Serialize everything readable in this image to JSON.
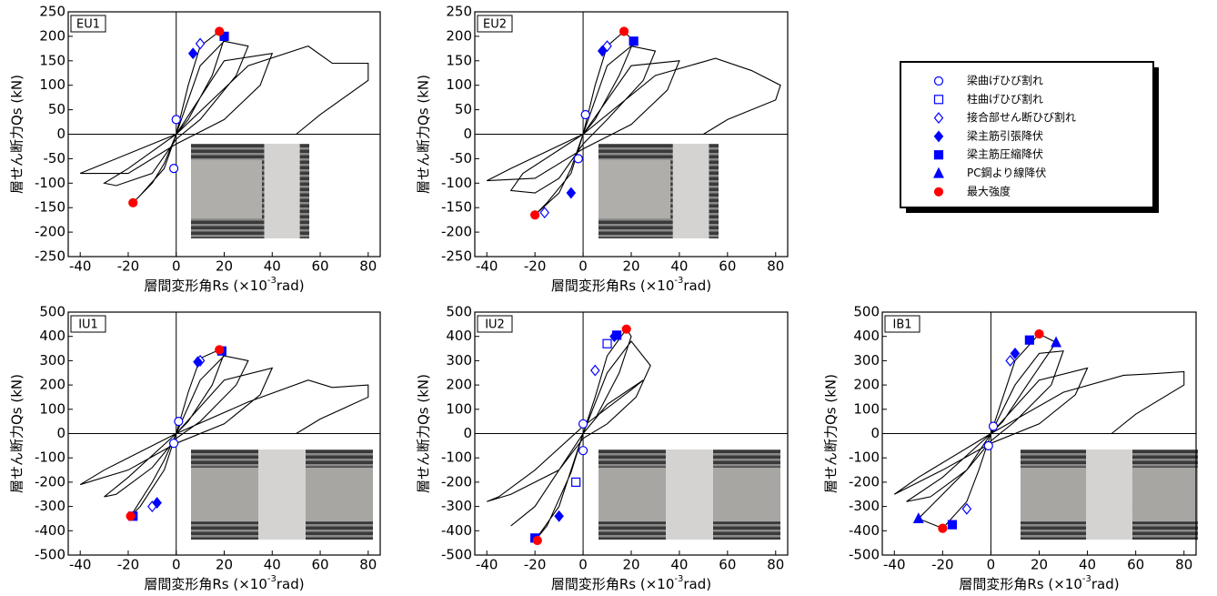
{
  "chart_data": [
    {
      "type": "line",
      "title": "EU1",
      "ylabel": "層せん断力Qs (kN)",
      "xlabel": "層間変形角Rs (×10",
      "xlabel_exp": "-3",
      "xlabel_unit": "rad)",
      "xlim": [
        -45,
        85
      ],
      "xticks": [
        -40,
        -20,
        0,
        20,
        40,
        60,
        80
      ],
      "ylim": [
        -250,
        250
      ],
      "yticks": [
        -250,
        -200,
        -150,
        -100,
        -50,
        0,
        50,
        100,
        150,
        200,
        250
      ],
      "series": [
        {
          "color": "#000000",
          "x": [
            0,
            5,
            10,
            18,
            20,
            15,
            5,
            0,
            -5,
            -10,
            -18,
            -15,
            -5,
            0,
            10,
            20,
            30,
            25,
            10,
            0,
            -10,
            -25,
            -30,
            -20,
            0,
            20,
            40,
            35,
            20,
            0,
            -20,
            -40,
            -30,
            0,
            30,
            55,
            65,
            80,
            80,
            60,
            50
          ],
          "values": [
            0,
            100,
            180,
            210,
            195,
            120,
            30,
            0,
            -60,
            -100,
            -140,
            -125,
            -70,
            0,
            140,
            190,
            180,
            120,
            30,
            -10,
            -80,
            -105,
            -100,
            -70,
            0,
            150,
            165,
            100,
            30,
            -20,
            -80,
            -80,
            -60,
            0,
            140,
            180,
            145,
            145,
            110,
            40,
            0
          ]
        },
        {
          "name": "梁曲げひび割れ",
          "marker": "circle-open",
          "color": "#0000ff",
          "x": [
            0,
            -1
          ],
          "values": [
            30,
            -70
          ]
        },
        {
          "name": "柱曲げひび割れ",
          "marker": "square-open",
          "color": "#0000ff",
          "x": [],
          "values": []
        },
        {
          "name": "接合部せん断ひび割れ",
          "marker": "diamond-open",
          "color": "#0000ff",
          "x": [
            10
          ],
          "values": [
            185
          ]
        },
        {
          "name": "梁主筋引張降伏",
          "marker": "diamond",
          "color": "#0000ff",
          "x": [
            7
          ],
          "values": [
            165
          ]
        },
        {
          "name": "梁主筋圧縮降伏",
          "marker": "square",
          "color": "#0000ff",
          "x": [
            20
          ],
          "values": [
            200
          ]
        },
        {
          "name": "PC鋼より線降伏",
          "marker": "triangle",
          "color": "#0000ff",
          "x": [],
          "values": []
        },
        {
          "name": "最大強度",
          "marker": "circle",
          "color": "#ff0000",
          "x": [
            18,
            -18
          ],
          "values": [
            210,
            -140
          ]
        }
      ]
    },
    {
      "type": "line",
      "title": "EU2",
      "ylabel": "層せん断力Qs (kN)",
      "xlabel": "層間変形角Rs (×10",
      "xlabel_exp": "-3",
      "xlabel_unit": "rad)",
      "xlim": [
        -45,
        85
      ],
      "xticks": [
        -40,
        -20,
        0,
        20,
        40,
        60,
        80
      ],
      "ylim": [
        -250,
        250
      ],
      "yticks": [
        -250,
        -200,
        -150,
        -100,
        -50,
        0,
        50,
        100,
        150,
        200,
        250
      ],
      "series": [
        {
          "color": "#000000",
          "x": [
            0,
            5,
            10,
            17,
            21,
            15,
            5,
            0,
            -5,
            -10,
            -20,
            -15,
            -5,
            0,
            10,
            20,
            30,
            25,
            10,
            0,
            -10,
            -20,
            -30,
            -25,
            0,
            20,
            40,
            35,
            20,
            0,
            -20,
            -40,
            -30,
            0,
            30,
            55,
            70,
            82,
            80,
            60,
            50
          ],
          "values": [
            0,
            100,
            180,
            210,
            190,
            120,
            30,
            0,
            -70,
            -120,
            -165,
            -140,
            -80,
            0,
            140,
            180,
            170,
            110,
            30,
            -20,
            -90,
            -120,
            -115,
            -80,
            0,
            140,
            150,
            90,
            20,
            -30,
            -90,
            -95,
            -70,
            0,
            120,
            155,
            130,
            100,
            70,
            30,
            0
          ]
        },
        {
          "name": "梁曲げひび割れ",
          "marker": "circle-open",
          "color": "#0000ff",
          "x": [
            1,
            -2
          ],
          "values": [
            40,
            -50
          ]
        },
        {
          "name": "柱曲げひび割れ",
          "marker": "square-open",
          "color": "#0000ff",
          "x": [],
          "values": []
        },
        {
          "name": "接合部せん断ひび割れ",
          "marker": "diamond-open",
          "color": "#0000ff",
          "x": [
            10,
            -16
          ],
          "values": [
            180,
            -160
          ]
        },
        {
          "name": "梁主筋引張降伏",
          "marker": "diamond",
          "color": "#0000ff",
          "x": [
            8,
            -5
          ],
          "values": [
            170,
            -120
          ]
        },
        {
          "name": "梁主筋圧縮降伏",
          "marker": "square",
          "color": "#0000ff",
          "x": [
            21
          ],
          "values": [
            190
          ]
        },
        {
          "name": "PC鋼より線降伏",
          "marker": "triangle",
          "color": "#0000ff",
          "x": [],
          "values": []
        },
        {
          "name": "最大強度",
          "marker": "circle",
          "color": "#ff0000",
          "x": [
            17,
            -20
          ],
          "values": [
            210,
            -165
          ]
        }
      ]
    },
    {
      "type": "line",
      "title": "IU1",
      "ylabel": "層せん断力Qs (kN)",
      "xlabel": "層間変形角Rs (×10",
      "xlabel_exp": "-3",
      "xlabel_unit": "rad)",
      "xlim": [
        -45,
        85
      ],
      "xticks": [
        -40,
        -20,
        0,
        20,
        40,
        60,
        80
      ],
      "ylim": [
        -500,
        500
      ],
      "yticks": [
        -500,
        -400,
        -300,
        -200,
        -100,
        0,
        100,
        200,
        300,
        400,
        500
      ],
      "series": [
        {
          "color": "#000000",
          "x": [
            0,
            5,
            10,
            18,
            20,
            15,
            5,
            0,
            -5,
            -10,
            -19,
            -15,
            -5,
            0,
            10,
            20,
            30,
            25,
            10,
            0,
            -10,
            -25,
            -30,
            -20,
            0,
            20,
            40,
            35,
            20,
            0,
            -20,
            -40,
            -30,
            0,
            30,
            55,
            65,
            80,
            80,
            60,
            50
          ],
          "values": [
            0,
            170,
            310,
            345,
            330,
            200,
            50,
            0,
            -110,
            -200,
            -340,
            -300,
            -150,
            0,
            220,
            320,
            300,
            200,
            50,
            -20,
            -140,
            -250,
            -260,
            -180,
            0,
            220,
            270,
            160,
            40,
            -40,
            -150,
            -210,
            -150,
            0,
            130,
            220,
            190,
            200,
            150,
            60,
            0
          ]
        },
        {
          "name": "梁曲げひび割れ",
          "marker": "circle-open",
          "color": "#0000ff",
          "x": [
            1,
            -1
          ],
          "values": [
            50,
            -40
          ]
        },
        {
          "name": "柱曲げひび割れ",
          "marker": "square-open",
          "color": "#0000ff",
          "x": [],
          "values": []
        },
        {
          "name": "接合部せん断ひび割れ",
          "marker": "diamond-open",
          "color": "#0000ff",
          "x": [
            10,
            -10
          ],
          "values": [
            300,
            -300
          ]
        },
        {
          "name": "梁主筋引張降伏",
          "marker": "diamond",
          "color": "#0000ff",
          "x": [
            9,
            -8
          ],
          "values": [
            295,
            -285
          ]
        },
        {
          "name": "梁主筋圧縮降伏",
          "marker": "square",
          "color": "#0000ff",
          "x": [
            19,
            -18
          ],
          "values": [
            340,
            -340
          ]
        },
        {
          "name": "PC鋼より線降伏",
          "marker": "triangle",
          "color": "#0000ff",
          "x": [],
          "values": []
        },
        {
          "name": "最大強度",
          "marker": "circle",
          "color": "#ff0000",
          "x": [
            18,
            -19
          ],
          "values": [
            345,
            -340
          ]
        }
      ]
    },
    {
      "type": "line",
      "title": "IU2",
      "ylabel": "層せん断力Qs (kN)",
      "xlabel": "層間変形角Rs (×10",
      "xlabel_exp": "-3",
      "xlabel_unit": "rad)",
      "xlim": [
        -45,
        85
      ],
      "xticks": [
        -40,
        -20,
        0,
        20,
        40,
        60,
        80
      ],
      "ylim": [
        -500,
        500
      ],
      "yticks": [
        -500,
        -400,
        -300,
        -200,
        -100,
        0,
        100,
        200,
        300,
        400,
        500
      ],
      "series": [
        {
          "color": "#000000",
          "x": [
            0,
            5,
            10,
            18,
            20,
            15,
            5,
            0,
            -5,
            -10,
            -20,
            -15,
            -5,
            0,
            10,
            20,
            28,
            22,
            10,
            0,
            -10,
            -20,
            -30,
            -20,
            0,
            10,
            25,
            20,
            0,
            -20,
            -35,
            -40,
            -30,
            -10,
            0
          ],
          "values": [
            0,
            150,
            320,
            430,
            400,
            250,
            60,
            0,
            -150,
            -300,
            -440,
            -380,
            -160,
            0,
            250,
            380,
            280,
            150,
            40,
            -20,
            -150,
            -300,
            -380,
            -300,
            0,
            120,
            220,
            180,
            30,
            -150,
            -260,
            -280,
            -250,
            -150,
            0
          ]
        },
        {
          "name": "梁曲げひび割れ",
          "marker": "circle-open",
          "color": "#0000ff",
          "x": [
            0,
            0
          ],
          "values": [
            40,
            -70
          ]
        },
        {
          "name": "柱曲げひび割れ",
          "marker": "square-open",
          "color": "#0000ff",
          "x": [
            10,
            -3
          ],
          "values": [
            370,
            -200
          ]
        },
        {
          "name": "接合部せん断ひび割れ",
          "marker": "diamond-open",
          "color": "#0000ff",
          "x": [
            5
          ],
          "values": [
            260
          ]
        },
        {
          "name": "梁主筋引張降伏",
          "marker": "diamond",
          "color": "#0000ff",
          "x": [
            13,
            -10
          ],
          "values": [
            400,
            -340
          ]
        },
        {
          "name": "梁主筋圧縮降伏",
          "marker": "square",
          "color": "#0000ff",
          "x": [
            14,
            -20
          ],
          "values": [
            405,
            -430
          ]
        },
        {
          "name": "PC鋼より線降伏",
          "marker": "triangle",
          "color": "#0000ff",
          "x": [],
          "values": []
        },
        {
          "name": "最大強度",
          "marker": "circle",
          "color": "#ff0000",
          "x": [
            18,
            -19
          ],
          "values": [
            430,
            -440
          ]
        }
      ]
    },
    {
      "type": "line",
      "title": "IB1",
      "ylabel": "層せん断力Qs (kN)",
      "xlabel": "層間変形角Rs (×10",
      "xlabel_exp": "-3",
      "xlabel_unit": "rad)",
      "xlim": [
        -45,
        85
      ],
      "xticks": [
        -40,
        -20,
        0,
        20,
        40,
        60,
        80
      ],
      "ylim": [
        -500,
        500
      ],
      "yticks": [
        -500,
        -400,
        -300,
        -200,
        -100,
        0,
        100,
        200,
        300,
        400,
        500
      ],
      "series": [
        {
          "color": "#000000",
          "x": [
            0,
            5,
            10,
            20,
            27,
            15,
            5,
            0,
            -5,
            -10,
            -20,
            -30,
            -10,
            0,
            10,
            20,
            30,
            25,
            10,
            0,
            -10,
            -25,
            -35,
            -20,
            0,
            20,
            40,
            35,
            20,
            0,
            -20,
            -40,
            -30,
            0,
            30,
            55,
            65,
            80,
            80,
            60,
            50
          ],
          "values": [
            0,
            150,
            300,
            410,
            375,
            200,
            50,
            0,
            -150,
            -280,
            -390,
            -350,
            -150,
            0,
            200,
            330,
            340,
            200,
            50,
            -30,
            -150,
            -260,
            -280,
            -180,
            0,
            220,
            270,
            160,
            40,
            -40,
            -150,
            -250,
            -180,
            0,
            170,
            240,
            245,
            255,
            200,
            80,
            0
          ]
        },
        {
          "name": "梁曲げひび割れ",
          "marker": "circle-open",
          "color": "#0000ff",
          "x": [
            1,
            -1
          ],
          "values": [
            30,
            -50
          ]
        },
        {
          "name": "柱曲げひび割れ",
          "marker": "square-open",
          "color": "#0000ff",
          "x": [],
          "values": []
        },
        {
          "name": "接合部せん断ひび割れ",
          "marker": "diamond-open",
          "color": "#0000ff",
          "x": [
            8,
            -10
          ],
          "values": [
            300,
            -310
          ]
        },
        {
          "name": "梁主筋引張降伏",
          "marker": "diamond",
          "color": "#0000ff",
          "x": [
            10
          ],
          "values": [
            330
          ]
        },
        {
          "name": "梁主筋圧縮降伏",
          "marker": "square",
          "color": "#0000ff",
          "x": [
            16,
            -16
          ],
          "values": [
            385,
            -375
          ]
        },
        {
          "name": "PC鋼より線降伏",
          "marker": "triangle",
          "color": "#0000ff",
          "x": [
            27,
            -30
          ],
          "values": [
            375,
            -350
          ]
        },
        {
          "name": "最大強度",
          "marker": "circle",
          "color": "#ff0000",
          "x": [
            20,
            -20
          ],
          "values": [
            410,
            -390
          ]
        }
      ]
    }
  ]
}
